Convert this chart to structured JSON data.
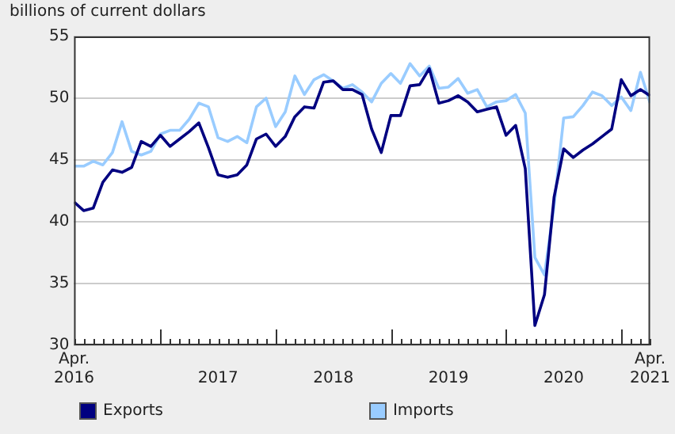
{
  "chart_data": {
    "type": "line",
    "ylabel": "billions of current dollars",
    "x": [
      "2016-04",
      "2016-05",
      "2016-06",
      "2016-07",
      "2016-08",
      "2016-09",
      "2016-10",
      "2016-11",
      "2016-12",
      "2017-01",
      "2017-02",
      "2017-03",
      "2017-04",
      "2017-05",
      "2017-06",
      "2017-07",
      "2017-08",
      "2017-09",
      "2017-10",
      "2017-11",
      "2017-12",
      "2018-01",
      "2018-02",
      "2018-03",
      "2018-04",
      "2018-05",
      "2018-06",
      "2018-07",
      "2018-08",
      "2018-09",
      "2018-10",
      "2018-11",
      "2018-12",
      "2019-01",
      "2019-02",
      "2019-03",
      "2019-04",
      "2019-05",
      "2019-06",
      "2019-07",
      "2019-08",
      "2019-09",
      "2019-10",
      "2019-11",
      "2019-12",
      "2020-01",
      "2020-02",
      "2020-03",
      "2020-04",
      "2020-05",
      "2020-06",
      "2020-07",
      "2020-08",
      "2020-09",
      "2020-10",
      "2020-11",
      "2020-12",
      "2021-01",
      "2021-02",
      "2021-03",
      "2021-04"
    ],
    "series": [
      {
        "name": "Exports",
        "color": "#000080",
        "values": [
          41.6,
          40.9,
          41.1,
          43.2,
          44.2,
          44.0,
          44.4,
          46.5,
          46.1,
          47.0,
          46.1,
          46.7,
          47.3,
          48.0,
          46.0,
          43.8,
          43.6,
          43.8,
          44.6,
          46.7,
          47.1,
          46.1,
          46.9,
          48.5,
          49.3,
          49.2,
          51.3,
          51.4,
          50.7,
          50.7,
          50.3,
          47.5,
          45.6,
          48.6,
          48.6,
          51.0,
          51.1,
          52.4,
          49.6,
          49.8,
          50.2,
          49.7,
          48.9,
          49.1,
          49.3,
          47.0,
          47.8,
          44.3,
          31.6,
          34.1,
          42.0,
          45.9,
          45.2,
          45.8,
          46.3,
          46.9,
          47.5,
          51.5,
          50.2,
          50.7,
          50.2
        ]
      },
      {
        "name": "Imports",
        "color": "#99ccff",
        "values": [
          44.5,
          44.5,
          44.9,
          44.6,
          45.6,
          48.1,
          45.7,
          45.4,
          45.7,
          47.1,
          47.4,
          47.4,
          48.3,
          49.6,
          49.3,
          46.8,
          46.5,
          46.9,
          46.4,
          49.3,
          50.0,
          47.7,
          48.9,
          51.8,
          50.3,
          51.5,
          51.9,
          51.4,
          50.8,
          51.1,
          50.5,
          49.7,
          51.2,
          52.0,
          51.2,
          52.8,
          51.8,
          52.6,
          50.8,
          50.9,
          51.6,
          50.4,
          50.7,
          49.3,
          49.7,
          49.8,
          50.3,
          48.8,
          37.1,
          35.7,
          41.3,
          48.4,
          48.5,
          49.4,
          50.5,
          50.2,
          49.4,
          50.1,
          49.0,
          52.1,
          49.6
        ]
      }
    ],
    "xlim": [
      "2016-04",
      "2021-04"
    ],
    "xticks": [
      {
        "value": "2016-04",
        "label": "Apr.\n2016"
      },
      {
        "value": "2017-07",
        "label": "2017"
      },
      {
        "value": "2018-07",
        "label": "2018"
      },
      {
        "value": "2019-07",
        "label": "2019"
      },
      {
        "value": "2020-07",
        "label": "2020"
      },
      {
        "value": "2021-04",
        "label": "Apr.\n2021"
      }
    ],
    "ylim": [
      30,
      55
    ],
    "yticks": [
      30,
      35,
      40,
      45,
      50,
      55
    ],
    "grid": "y",
    "legend": "bottom",
    "marker": "none",
    "line_style": "solid"
  }
}
